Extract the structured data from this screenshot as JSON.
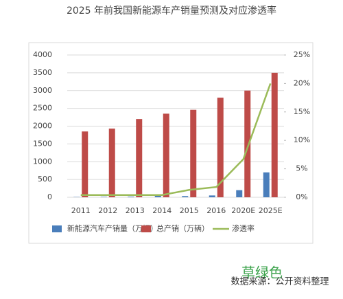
{
  "chart_data": {
    "type": "bar-line",
    "title": "2025 年前我国新能源车产销量预测及对应渗透率",
    "categories": [
      "2011",
      "2012",
      "2013",
      "2014",
      "2015",
      "2016",
      "2020E",
      "2025E"
    ],
    "series": [
      {
        "name": "新能源汽车产销量（万辆）",
        "type": "bar",
        "color": "#4a7ebb",
        "values": [
          8,
          13,
          18,
          75,
          33,
          51,
          200,
          700
        ]
      },
      {
        "name": "总产销（万辆）",
        "type": "bar",
        "color": "#be4b48",
        "values": [
          1850,
          1930,
          2200,
          2350,
          2460,
          2800,
          3000,
          3500
        ]
      },
      {
        "name": "渗透率",
        "type": "line",
        "axis": "y2",
        "color": "#9bbb59",
        "values": [
          0.4,
          0.4,
          0.4,
          0.4,
          1.3,
          1.8,
          6.7,
          20
        ]
      }
    ],
    "ylim": [
      0,
      4000
    ],
    "yticks": [
      0,
      500,
      1000,
      1500,
      2000,
      2500,
      3000,
      3500,
      4000
    ],
    "y2lim": [
      0,
      25
    ],
    "y2ticks": [
      {
        "value": 0,
        "label": "0%"
      },
      {
        "value": 5,
        "label": "5%"
      },
      {
        "value": 10,
        "label": "10%"
      },
      {
        "value": 15,
        "label": "15%"
      },
      {
        "value": 20,
        "label": "20%"
      },
      {
        "value": 25,
        "label": "25%"
      }
    ],
    "watermark": "草绿色",
    "source": "数据来源：公开资料整理"
  }
}
